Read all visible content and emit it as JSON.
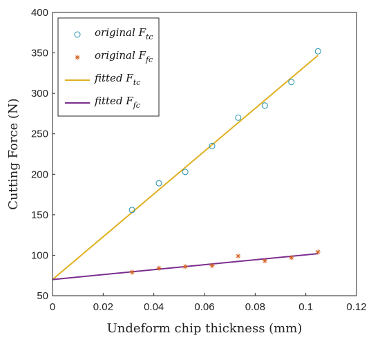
{
  "chart_data": {
    "type": "scatter",
    "xlabel": "Undeform chip thickness (mm)",
    "ylabel": "Cutting Force (N)",
    "xlim": [
      0,
      0.12
    ],
    "ylim": [
      50,
      400
    ],
    "xticks": [
      0,
      0.02,
      0.04,
      0.06,
      0.08,
      0.1,
      0.12
    ],
    "xtick_labels": [
      "0",
      "0.02",
      "0.04",
      "0.06",
      "0.08",
      "0.1",
      "0.12"
    ],
    "yticks": [
      50,
      100,
      150,
      200,
      250,
      300,
      350,
      400
    ],
    "ytick_labels": [
      "50",
      "100",
      "150",
      "200",
      "250",
      "300",
      "350",
      "400"
    ],
    "grid": false,
    "legend_position": "top-left",
    "series": [
      {
        "name": "original F",
        "name_sub": "tc",
        "kind": "scatter",
        "marker": "circle",
        "color": "#1f8fa8",
        "x": [
          0.0314,
          0.042,
          0.0524,
          0.063,
          0.0733,
          0.0838,
          0.0943,
          0.1048
        ],
        "y": [
          156,
          189,
          203,
          235,
          270,
          285,
          314,
          352
        ]
      },
      {
        "name": "original F",
        "name_sub": "fc",
        "kind": "scatter",
        "marker": "asterisk",
        "color": "#d4621f",
        "x": [
          0.0314,
          0.042,
          0.0524,
          0.063,
          0.0733,
          0.0838,
          0.0943,
          0.1048
        ],
        "y": [
          79,
          84,
          86,
          87,
          99,
          93,
          97,
          104
        ]
      },
      {
        "name": "fitted F",
        "name_sub": "tc",
        "kind": "line",
        "color": "#e0b020",
        "x": [
          0,
          0.1048
        ],
        "y": [
          70,
          347
        ]
      },
      {
        "name": "fitted F",
        "name_sub": "fc",
        "kind": "line",
        "color": "#7b2d8e",
        "x": [
          0,
          0.1048
        ],
        "y": [
          70,
          102
        ]
      }
    ]
  }
}
